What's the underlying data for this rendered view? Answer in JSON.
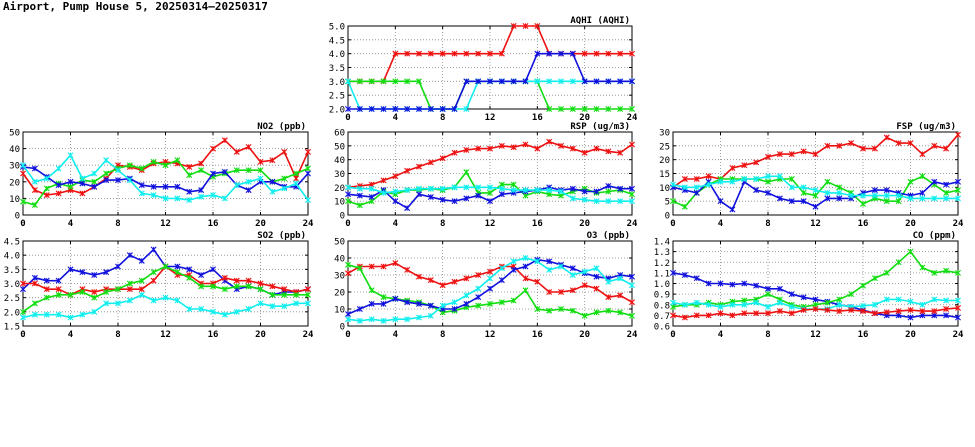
{
  "page": {
    "title": "Airport, Pump House 5, 20250314–20250317"
  },
  "colors": {
    "red": "#ee1111",
    "green": "#11dd11",
    "blue": "#1111dd",
    "cyan": "#11eeee",
    "grid": "#888888"
  },
  "chart_data": [
    {
      "id": "aqhi",
      "type": "line",
      "title": "AQHI (AQHI)",
      "xlim": [
        0,
        24
      ],
      "xticks": [
        0,
        4,
        8,
        12,
        16,
        20,
        24
      ],
      "ylim": [
        2.0,
        5.0
      ],
      "yticks": [
        "2.0",
        "2.5",
        "3.0",
        "3.5",
        "4.0",
        "4.5",
        "5.0"
      ],
      "series": [
        {
          "name": "red",
          "color": "#ee1111",
          "values": [
            3,
            3,
            3,
            3,
            4,
            4,
            4,
            4,
            4,
            4,
            4,
            4,
            4,
            4,
            5,
            5,
            5,
            4,
            4,
            4,
            4,
            4,
            4,
            4,
            4
          ]
        },
        {
          "name": "green",
          "color": "#11dd11",
          "values": [
            3,
            3,
            3,
            3,
            3,
            3,
            3,
            2,
            2,
            2,
            3,
            3,
            3,
            3,
            3,
            3,
            3,
            2,
            2,
            2,
            2,
            2,
            2,
            2,
            2
          ]
        },
        {
          "name": "cyan",
          "color": "#11eeee",
          "values": [
            3,
            2,
            2,
            2,
            2,
            2,
            2,
            2,
            2,
            2,
            2,
            3,
            3,
            3,
            3,
            3,
            3,
            3,
            3,
            3,
            3,
            3,
            3,
            3,
            3
          ]
        },
        {
          "name": "blue",
          "color": "#1111dd",
          "values": [
            2,
            2,
            2,
            2,
            2,
            2,
            2,
            2,
            2,
            2,
            3,
            3,
            3,
            3,
            3,
            3,
            4,
            4,
            4,
            4,
            3,
            3,
            3,
            3,
            3
          ]
        }
      ]
    },
    {
      "id": "no2",
      "type": "line",
      "title": "NO2 (ppb)",
      "xlim": [
        0,
        24
      ],
      "xticks": [
        0,
        4,
        8,
        12,
        16,
        20,
        24
      ],
      "ylim": [
        0,
        50
      ],
      "yticks": [
        "0",
        "10",
        "20",
        "30",
        "40",
        "50"
      ],
      "series": [
        {
          "name": "red",
          "color": "#ee1111",
          "values": [
            25,
            15,
            12,
            13,
            15,
            13,
            17,
            22,
            30,
            29,
            27,
            31,
            32,
            31,
            29,
            31,
            40,
            45,
            38,
            41,
            32,
            33,
            38,
            22,
            38
          ]
        },
        {
          "name": "green",
          "color": "#11dd11",
          "values": [
            8,
            6,
            16,
            19,
            17,
            21,
            20,
            25,
            28,
            30,
            28,
            32,
            30,
            33,
            24,
            27,
            23,
            25,
            27,
            27,
            27,
            20,
            22,
            25,
            28
          ]
        },
        {
          "name": "blue",
          "color": "#1111dd",
          "values": [
            29,
            28,
            23,
            18,
            20,
            19,
            17,
            21,
            21,
            22,
            18,
            17,
            17,
            17,
            14,
            15,
            25,
            26,
            18,
            15,
            20,
            20,
            17,
            17,
            25
          ]
        },
        {
          "name": "cyan",
          "color": "#11eeee",
          "values": [
            30,
            20,
            22,
            28,
            36,
            22,
            25,
            33,
            27,
            21,
            13,
            12,
            10,
            10,
            9,
            11,
            12,
            10,
            18,
            20,
            22,
            14,
            16,
            19,
            9
          ]
        }
      ]
    },
    {
      "id": "rsp",
      "type": "line",
      "title": "RSP (ug/m3)",
      "xlim": [
        0,
        24
      ],
      "xticks": [
        0,
        4,
        8,
        12,
        16,
        20,
        24
      ],
      "ylim": [
        0,
        60
      ],
      "yticks": [
        "0",
        "10",
        "20",
        "30",
        "40",
        "50",
        "60"
      ],
      "series": [
        {
          "name": "red",
          "color": "#ee1111",
          "values": [
            20,
            21,
            22,
            25,
            28,
            32,
            35,
            38,
            41,
            45,
            47,
            48,
            48,
            50,
            49,
            51,
            48,
            53,
            50,
            48,
            45,
            48,
            46,
            45,
            51
          ]
        },
        {
          "name": "green",
          "color": "#11dd11",
          "values": [
            10,
            7,
            10,
            17,
            15,
            18,
            18,
            19,
            18,
            20,
            31,
            16,
            16,
            22,
            22,
            14,
            17,
            15,
            14,
            17,
            19,
            16,
            17,
            18,
            15
          ]
        },
        {
          "name": "blue",
          "color": "#1111dd",
          "values": [
            15,
            14,
            13,
            18,
            10,
            5,
            15,
            13,
            11,
            10,
            12,
            14,
            10,
            15,
            16,
            17,
            18,
            20,
            18,
            19,
            17,
            17,
            21,
            19,
            19
          ]
        },
        {
          "name": "cyan",
          "color": "#11eeee",
          "values": [
            20,
            19,
            19,
            16,
            17,
            18,
            19,
            19,
            19,
            20,
            20,
            20,
            20,
            19,
            18,
            18,
            18,
            18,
            17,
            12,
            11,
            10,
            10,
            10,
            10
          ]
        }
      ]
    },
    {
      "id": "fsp",
      "type": "line",
      "title": "FSP (ug/m3)",
      "xlim": [
        0,
        24
      ],
      "xticks": [
        0,
        4,
        8,
        12,
        16,
        20,
        24
      ],
      "ylim": [
        0,
        30
      ],
      "yticks": [
        "0",
        "5",
        "10",
        "15",
        "20",
        "25",
        "30"
      ],
      "series": [
        {
          "name": "red",
          "color": "#ee1111",
          "values": [
            10,
            13,
            13,
            14,
            13,
            17,
            18,
            19,
            21,
            22,
            22,
            23,
            22,
            25,
            25,
            26,
            24,
            24,
            28,
            26,
            26,
            22,
            25,
            24,
            29
          ]
        },
        {
          "name": "green",
          "color": "#11dd11",
          "values": [
            5,
            3,
            8,
            11,
            13,
            13,
            13,
            13,
            12,
            13,
            13,
            8,
            7,
            12,
            10,
            8,
            4,
            6,
            5,
            5,
            12,
            14,
            11,
            8,
            9
          ]
        },
        {
          "name": "blue",
          "color": "#1111dd",
          "values": [
            10,
            9,
            8,
            12,
            5,
            2,
            12,
            9,
            8,
            6,
            5,
            5,
            3,
            6,
            6,
            6,
            8,
            9,
            9,
            8,
            7,
            8,
            12,
            11,
            12
          ]
        },
        {
          "name": "cyan",
          "color": "#11eeee",
          "values": [
            11,
            10,
            10,
            11,
            12,
            12,
            13,
            13,
            14,
            14,
            10,
            10,
            9,
            8,
            8,
            7,
            7,
            7,
            7,
            7,
            6,
            6,
            6,
            6,
            6
          ]
        }
      ]
    },
    {
      "id": "so2",
      "type": "line",
      "title": "SO2 (ppb)",
      "xlim": [
        0,
        24
      ],
      "xticks": [
        0,
        4,
        8,
        12,
        16,
        20,
        24
      ],
      "ylim": [
        1.5,
        4.5
      ],
      "yticks": [
        "1.5",
        "2.0",
        "2.5",
        "3.0",
        "3.5",
        "4.0",
        "4.5"
      ],
      "series": [
        {
          "name": "blue",
          "color": "#1111dd",
          "values": [
            2.8,
            3.2,
            3.1,
            3.1,
            3.5,
            3.4,
            3.3,
            3.4,
            3.6,
            4.0,
            3.8,
            4.2,
            3.6,
            3.6,
            3.5,
            3.3,
            3.5,
            3.1,
            2.8,
            2.9,
            2.8,
            2.6,
            2.7,
            2.7,
            2.8
          ]
        },
        {
          "name": "red",
          "color": "#ee1111",
          "values": [
            3.0,
            3.0,
            2.8,
            2.8,
            2.6,
            2.8,
            2.7,
            2.8,
            2.8,
            2.8,
            2.8,
            3.1,
            3.6,
            3.3,
            3.3,
            3.0,
            3.0,
            3.2,
            3.1,
            3.1,
            3.0,
            2.9,
            2.8,
            2.7,
            2.8
          ]
        },
        {
          "name": "green",
          "color": "#11dd11",
          "values": [
            2.0,
            2.3,
            2.5,
            2.6,
            2.6,
            2.7,
            2.5,
            2.7,
            2.8,
            3.0,
            3.1,
            3.4,
            3.6,
            3.4,
            3.2,
            2.9,
            2.9,
            2.8,
            2.9,
            2.9,
            2.8,
            2.6,
            2.6,
            2.6,
            2.6
          ]
        },
        {
          "name": "cyan",
          "color": "#11eeee",
          "values": [
            1.8,
            1.9,
            1.9,
            1.9,
            1.8,
            1.9,
            2.0,
            2.3,
            2.3,
            2.4,
            2.6,
            2.4,
            2.5,
            2.4,
            2.1,
            2.1,
            2.0,
            1.9,
            2.0,
            2.1,
            2.3,
            2.2,
            2.2,
            2.3,
            2.3
          ]
        }
      ]
    },
    {
      "id": "o3",
      "type": "line",
      "title": "O3 (ppb)",
      "xlim": [
        0,
        24
      ],
      "xticks": [
        0,
        4,
        8,
        12,
        16,
        20,
        24
      ],
      "ylim": [
        0,
        50
      ],
      "yticks": [
        "0",
        "10",
        "20",
        "30",
        "40",
        "50"
      ],
      "series": [
        {
          "name": "red",
          "color": "#ee1111",
          "values": [
            31,
            35,
            35,
            35,
            37,
            33,
            29,
            27,
            24,
            26,
            28,
            30,
            32,
            35,
            35,
            28,
            26,
            20,
            20,
            21,
            24,
            22,
            17,
            18,
            14
          ]
        },
        {
          "name": "green",
          "color": "#11dd11",
          "values": [
            36,
            34,
            21,
            17,
            16,
            15,
            14,
            12,
            8,
            9,
            11,
            12,
            13,
            14,
            15,
            21,
            10,
            9,
            10,
            9,
            6,
            8,
            9,
            8,
            6
          ]
        },
        {
          "name": "blue",
          "color": "#1111dd",
          "values": [
            7,
            10,
            13,
            13,
            16,
            14,
            13,
            12,
            10,
            10,
            13,
            17,
            22,
            27,
            33,
            35,
            39,
            38,
            36,
            34,
            31,
            29,
            28,
            30,
            29
          ]
        },
        {
          "name": "cyan",
          "color": "#11eeee",
          "values": [
            4,
            3,
            4,
            3,
            4,
            4,
            5,
            6,
            12,
            14,
            18,
            22,
            28,
            34,
            38,
            40,
            38,
            33,
            35,
            30,
            32,
            34,
            26,
            28,
            24
          ]
        }
      ]
    },
    {
      "id": "co",
      "type": "line",
      "title": "CO (ppm)",
      "xlim": [
        0,
        24
      ],
      "xticks": [
        0,
        4,
        8,
        12,
        16,
        20,
        24
      ],
      "ylim": [
        0.6,
        1.4
      ],
      "yticks": [
        "0.6",
        "0.7",
        "0.8",
        "0.9",
        "1.0",
        "1.1",
        "1.2",
        "1.3",
        "1.4"
      ],
      "series": [
        {
          "name": "blue",
          "color": "#1111dd",
          "values": [
            1.1,
            1.08,
            1.05,
            1.0,
            1.0,
            0.99,
            1.0,
            0.98,
            0.95,
            0.95,
            0.9,
            0.87,
            0.85,
            0.83,
            0.8,
            0.78,
            0.75,
            0.72,
            0.7,
            0.7,
            0.68,
            0.7,
            0.7,
            0.7,
            0.68
          ]
        },
        {
          "name": "green",
          "color": "#11dd11",
          "values": [
            0.78,
            0.8,
            0.8,
            0.82,
            0.8,
            0.83,
            0.84,
            0.85,
            0.9,
            0.85,
            0.8,
            0.78,
            0.8,
            0.82,
            0.85,
            0.9,
            0.98,
            1.05,
            1.1,
            1.2,
            1.3,
            1.15,
            1.1,
            1.12,
            1.1
          ]
        },
        {
          "name": "cyan",
          "color": "#11eeee",
          "values": [
            0.82,
            0.8,
            0.82,
            0.8,
            0.78,
            0.8,
            0.8,
            0.82,
            0.78,
            0.82,
            0.78,
            0.76,
            0.76,
            0.76,
            0.8,
            0.78,
            0.79,
            0.8,
            0.85,
            0.85,
            0.83,
            0.8,
            0.85,
            0.84,
            0.84
          ]
        },
        {
          "name": "red",
          "color": "#ee1111",
          "values": [
            0.7,
            0.68,
            0.7,
            0.7,
            0.72,
            0.7,
            0.72,
            0.72,
            0.72,
            0.74,
            0.72,
            0.75,
            0.76,
            0.75,
            0.74,
            0.75,
            0.74,
            0.72,
            0.73,
            0.74,
            0.75,
            0.74,
            0.74,
            0.76,
            0.77
          ]
        }
      ]
    }
  ]
}
